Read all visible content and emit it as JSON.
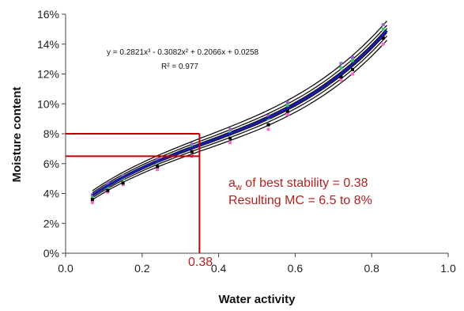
{
  "chart_data": {
    "type": "scatter",
    "title": "",
    "xlabel": "Water activity",
    "ylabel": "Moisture content",
    "xlim": [
      0.0,
      1.0
    ],
    "ylim": [
      0,
      16
    ],
    "x_ticks": [
      "0.0",
      "0.2",
      "0.4",
      "0.6",
      "0.8",
      "1.0"
    ],
    "y_ticks": [
      "0%",
      "2%",
      "4%",
      "6%",
      "8%",
      "10%",
      "12%",
      "14%",
      "16%"
    ],
    "grid": false,
    "fit": {
      "equation_line": "y = 0.2821x³ - 0.3082x² + 0.2066x + 0.0258",
      "r2_line": "R² = 0.977",
      "coefficients": [
        0.2821,
        -0.3082,
        0.2066,
        0.0258
      ],
      "x_range": [
        0.07,
        0.84
      ],
      "color": "#1a1aa8"
    },
    "replicate_offsets": [
      -0.45,
      -0.25,
      -0.1,
      0.1,
      0.25,
      0.45
    ],
    "series": [
      {
        "color": "#ff66cc",
        "x": [
          0.07,
          0.11,
          0.15,
          0.24,
          0.33,
          0.43,
          0.53,
          0.58,
          0.72,
          0.75,
          0.83
        ],
        "y": [
          3.4,
          4.1,
          4.6,
          5.6,
          6.5,
          7.4,
          8.3,
          9.3,
          11.6,
          12.0,
          14.0
        ]
      },
      {
        "color": "#33cc66",
        "x": [
          0.07,
          0.11,
          0.15,
          0.24,
          0.33,
          0.43,
          0.53,
          0.58,
          0.72,
          0.75,
          0.83
        ],
        "y": [
          3.7,
          4.4,
          5.0,
          6.1,
          7.1,
          8.1,
          9.0,
          9.9,
          12.4,
          12.9,
          15.0
        ]
      },
      {
        "color": "#000000",
        "x": [
          0.07,
          0.11,
          0.15,
          0.24,
          0.33,
          0.43,
          0.53,
          0.58,
          0.72,
          0.75,
          0.83
        ],
        "y": [
          3.6,
          4.2,
          4.7,
          5.8,
          6.8,
          7.7,
          8.6,
          9.5,
          11.8,
          12.3,
          14.4
        ]
      },
      {
        "color": "#9966cc",
        "x": [
          0.07,
          0.11,
          0.15,
          0.24,
          0.33,
          0.43,
          0.53,
          0.58,
          0.72,
          0.75,
          0.83
        ],
        "y": [
          3.9,
          4.7,
          5.2,
          6.3,
          7.3,
          8.3,
          9.2,
          10.1,
          12.7,
          13.1,
          15.3
        ]
      }
    ],
    "annotations": {
      "line1_main": "a",
      "line1_sub": "w",
      "line1_rest": " of best stability = 0.38",
      "line2": "Resulting MC = 6.5 to 8%",
      "marker_label": "0.38",
      "marker_x": 0.35,
      "band_low": 6.5,
      "band_high": 8.0,
      "color": "#c00000"
    }
  }
}
